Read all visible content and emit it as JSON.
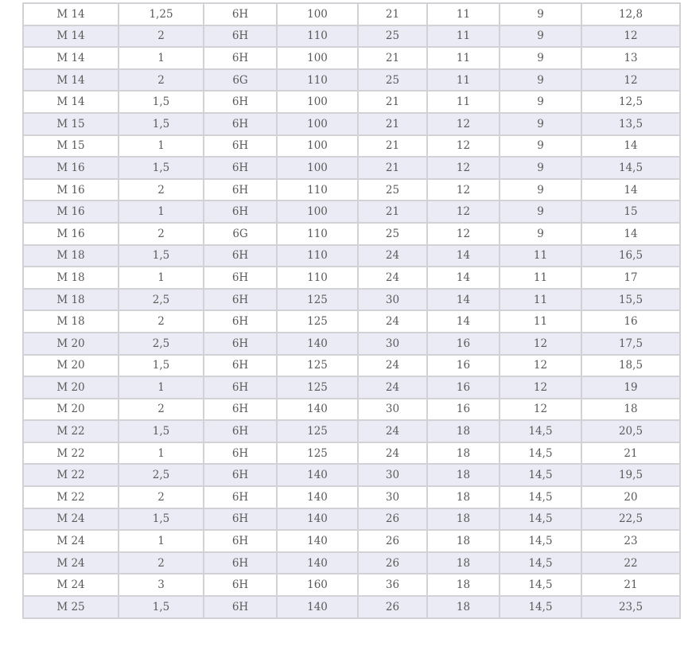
{
  "table": {
    "rows": [
      [
        "M 14",
        "1,25",
        "6H",
        "100",
        "21",
        "11",
        "9",
        "12,8"
      ],
      [
        "M 14",
        "2",
        "6H",
        "110",
        "25",
        "11",
        "9",
        "12"
      ],
      [
        "M 14",
        "1",
        "6H",
        "100",
        "21",
        "11",
        "9",
        "13"
      ],
      [
        "M 14",
        "2",
        "6G",
        "110",
        "25",
        "11",
        "9",
        "12"
      ],
      [
        "M 14",
        "1,5",
        "6H",
        "100",
        "21",
        "11",
        "9",
        "12,5"
      ],
      [
        "M 15",
        "1,5",
        "6H",
        "100",
        "21",
        "12",
        "9",
        "13,5"
      ],
      [
        "M 15",
        "1",
        "6H",
        "100",
        "21",
        "12",
        "9",
        "14"
      ],
      [
        "M 16",
        "1,5",
        "6H",
        "100",
        "21",
        "12",
        "9",
        "14,5"
      ],
      [
        "M 16",
        "2",
        "6H",
        "110",
        "25",
        "12",
        "9",
        "14"
      ],
      [
        "M 16",
        "1",
        "6H",
        "100",
        "21",
        "12",
        "9",
        "15"
      ],
      [
        "M 16",
        "2",
        "6G",
        "110",
        "25",
        "12",
        "9",
        "14"
      ],
      [
        "M 18",
        "1,5",
        "6H",
        "110",
        "24",
        "14",
        "11",
        "16,5"
      ],
      [
        "M 18",
        "1",
        "6H",
        "110",
        "24",
        "14",
        "11",
        "17"
      ],
      [
        "M 18",
        "2,5",
        "6H",
        "125",
        "30",
        "14",
        "11",
        "15,5"
      ],
      [
        "M 18",
        "2",
        "6H",
        "125",
        "24",
        "14",
        "11",
        "16"
      ],
      [
        "M 20",
        "2,5",
        "6H",
        "140",
        "30",
        "16",
        "12",
        "17,5"
      ],
      [
        "M 20",
        "1,5",
        "6H",
        "125",
        "24",
        "16",
        "12",
        "18,5"
      ],
      [
        "M 20",
        "1",
        "6H",
        "125",
        "24",
        "16",
        "12",
        "19"
      ],
      [
        "M 20",
        "2",
        "6H",
        "140",
        "30",
        "16",
        "12",
        "18"
      ],
      [
        "M 22",
        "1,5",
        "6H",
        "125",
        "24",
        "18",
        "14,5",
        "20,5"
      ],
      [
        "M 22",
        "1",
        "6H",
        "125",
        "24",
        "18",
        "14,5",
        "21"
      ],
      [
        "M 22",
        "2,5",
        "6H",
        "140",
        "30",
        "18",
        "14,5",
        "19,5"
      ],
      [
        "M 22",
        "2",
        "6H",
        "140",
        "30",
        "18",
        "14,5",
        "20"
      ],
      [
        "M 24",
        "1,5",
        "6H",
        "140",
        "26",
        "18",
        "14,5",
        "22,5"
      ],
      [
        "M 24",
        "1",
        "6H",
        "140",
        "26",
        "18",
        "14,5",
        "23"
      ],
      [
        "M 24",
        "2",
        "6H",
        "140",
        "26",
        "18",
        "14,5",
        "22"
      ],
      [
        "M 24",
        "3",
        "6H",
        "160",
        "36",
        "18",
        "14,5",
        "21"
      ],
      [
        "M 25",
        "1,5",
        "6H",
        "140",
        "26",
        "18",
        "14,5",
        "23,5"
      ]
    ]
  }
}
